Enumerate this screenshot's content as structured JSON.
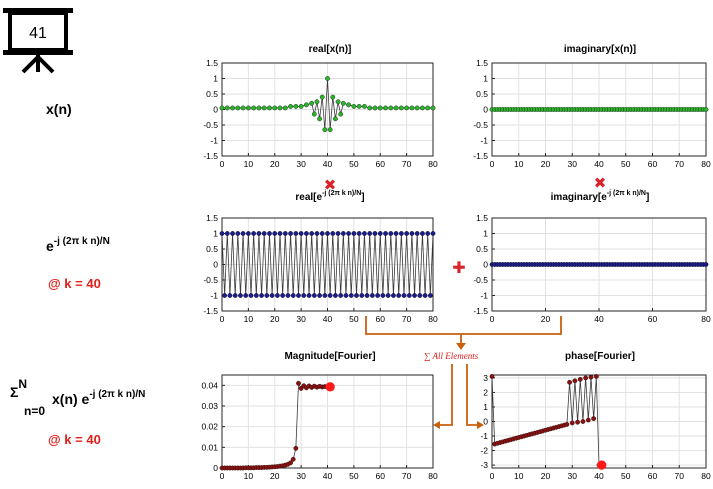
{
  "slide": {
    "number": "41"
  },
  "left_labels": {
    "xn": "x(n)",
    "kernel_base": "e",
    "kernel_exp": "-j (2π k n)/N",
    "kernel_k": "@ k = 40",
    "sum_sigma": "Σ",
    "sum_upper": "N",
    "sum_lower": "n=0",
    "sum_body": "x(n) e",
    "sum_exp": "-j (2π k n)/N",
    "sum_k": "@ k = 40"
  },
  "operators": {
    "multiply": "✖",
    "plus": "✚",
    "sum_annotation": "∑ All Elements"
  },
  "titles": {
    "real_x": "real[x(n)]",
    "imag_x": "imaginary[x(n)]",
    "real_e_pre": "real[e",
    "real_e_exp": "-j (2π k n)/N",
    "real_e_post": "]",
    "imag_e_pre": "imaginary[e",
    "imag_e_exp": "-j (2π k n)/N",
    "imag_e_post": "]",
    "mag": "Magnitude[Fourier]",
    "phase": "phase[Fourier]"
  },
  "colors": {
    "green": "#2bb52b",
    "navy": "#1c1c8c",
    "darkred": "#8b1010",
    "bright_red": "#ff1a1a",
    "orange": "#c8600e",
    "cross_red": "#d9232a"
  },
  "chart_data": [
    {
      "id": "real_x",
      "type": "line",
      "title": "real[x(n)]",
      "x_range": [
        0,
        80
      ],
      "ylim": [
        -1.5,
        1.5
      ],
      "xticks": [
        0,
        10,
        20,
        30,
        40,
        50,
        60,
        70,
        80
      ],
      "yticks": [
        -1.5,
        -1,
        -0.5,
        0,
        0.5,
        1,
        1.5
      ],
      "grid": true,
      "marker": "circle",
      "marker_color": "green",
      "x": [
        0,
        2,
        4,
        6,
        8,
        10,
        12,
        14,
        16,
        18,
        20,
        22,
        24,
        26,
        28,
        30,
        32,
        34,
        35,
        36,
        37,
        38,
        39,
        40,
        41,
        42,
        43,
        44,
        45,
        46,
        48,
        50,
        52,
        54,
        56,
        58,
        60,
        62,
        64,
        66,
        68,
        70,
        72,
        74,
        76,
        78,
        80
      ],
      "y": [
        0.05,
        0.05,
        0.05,
        0.05,
        0.05,
        0.05,
        0.05,
        0.05,
        0.05,
        0.05,
        0.05,
        0.05,
        0.05,
        0.1,
        0.1,
        0.1,
        0.15,
        0.2,
        -0.15,
        0.25,
        -0.3,
        0.4,
        -0.65,
        1.0,
        -0.65,
        0.4,
        -0.3,
        0.25,
        -0.15,
        0.2,
        0.15,
        0.1,
        0.1,
        0.1,
        0.05,
        0.05,
        0.05,
        0.05,
        0.05,
        0.05,
        0.05,
        0.05,
        0.05,
        0.05,
        0.05,
        0.05,
        0.05
      ]
    },
    {
      "id": "imag_x",
      "type": "line",
      "title": "imaginary[x(n)]",
      "x_range": [
        0,
        80
      ],
      "ylim": [
        -1.5,
        1.5
      ],
      "xticks": [
        0,
        10,
        20,
        30,
        40,
        50,
        60,
        70,
        80
      ],
      "yticks": [
        -1.5,
        -1,
        -0.5,
        0,
        0.5,
        1,
        1.5
      ],
      "grid": true,
      "marker": "circle",
      "marker_color": "green",
      "x_start": 0,
      "x_end": 80,
      "x_step": 1,
      "constant_y": 0
    },
    {
      "id": "real_e",
      "type": "line",
      "title": "real[e^-j (2π k n)/N]",
      "x_range": [
        0,
        80
      ],
      "ylim": [
        -1.5,
        1.5
      ],
      "xticks": [
        0,
        10,
        20,
        30,
        40,
        50,
        60,
        70,
        80
      ],
      "yticks": [
        -1.5,
        -1,
        -0.5,
        0,
        0.5,
        1,
        1.5
      ],
      "grid": true,
      "marker": "circle",
      "marker_color": "navy",
      "x_start": 0,
      "x_end": 80,
      "x_step": 1,
      "alternating_values": [
        1,
        -1
      ]
    },
    {
      "id": "imag_e",
      "type": "line",
      "title": "imaginary[e^-j (2π k n)/N]",
      "x_range": [
        0,
        80
      ],
      "ylim": [
        -1.5,
        1.5
      ],
      "xticks": [
        0,
        20,
        40,
        60,
        80
      ],
      "yticks": [
        -1.5,
        -1,
        -0.5,
        0,
        0.5,
        1,
        1.5
      ],
      "grid": true,
      "marker": "circle",
      "marker_color": "navy",
      "x_start": 0,
      "x_end": 80,
      "x_step": 1,
      "constant_y": 0
    },
    {
      "id": "mag",
      "type": "line",
      "title": "Magnitude[Fourier]",
      "x_range": [
        0,
        80
      ],
      "ylim": [
        0,
        0.045
      ],
      "xticks": [
        0,
        10,
        20,
        30,
        40,
        50,
        60,
        70,
        80
      ],
      "yticks": [
        0,
        0.01,
        0.02,
        0.03,
        0.04
      ],
      "grid": true,
      "marker": "circle",
      "marker_color": "darkred",
      "x": [
        0,
        1,
        2,
        3,
        4,
        5,
        6,
        7,
        8,
        9,
        10,
        11,
        12,
        13,
        14,
        15,
        16,
        17,
        18,
        19,
        20,
        21,
        22,
        23,
        24,
        25,
        26,
        27,
        28,
        29,
        30,
        31,
        32,
        33,
        34,
        35,
        36,
        37,
        38,
        39,
        40
      ],
      "y": [
        0,
        0,
        0,
        0,
        0,
        0,
        0,
        0,
        0,
        0.0001,
        0.0001,
        0.0001,
        0.0001,
        0.0002,
        0.0002,
        0.0002,
        0.0003,
        0.0003,
        0.0004,
        0.0005,
        0.0006,
        0.0007,
        0.0009,
        0.0011,
        0.0014,
        0.0018,
        0.0025,
        0.0042,
        0.0095,
        0.041,
        0.0385,
        0.0398,
        0.0388,
        0.0397,
        0.039,
        0.0396,
        0.0391,
        0.0395,
        0.0392,
        0.0394,
        0.0393
      ],
      "highlight_x": 41,
      "highlight_y": 0.0393
    },
    {
      "id": "phase",
      "type": "line",
      "title": "phase[Fourier]",
      "x_range": [
        0,
        80
      ],
      "ylim": [
        -3.2,
        3.2
      ],
      "xticks": [
        0,
        10,
        20,
        30,
        40,
        50,
        60,
        70,
        80
      ],
      "yticks": [
        -3,
        -2,
        -1,
        0,
        1,
        2,
        3
      ],
      "grid": true,
      "marker": "circle",
      "marker_color": "darkred",
      "x": [
        0,
        1,
        2,
        3,
        4,
        5,
        6,
        7,
        8,
        9,
        10,
        11,
        12,
        13,
        14,
        15,
        16,
        17,
        18,
        19,
        20,
        21,
        22,
        23,
        24,
        25,
        26,
        27,
        28,
        29,
        30,
        31,
        32,
        33,
        34,
        35,
        36,
        37,
        38,
        39,
        40
      ],
      "y": [
        3.1,
        -1.55,
        -1.5,
        -1.45,
        -1.4,
        -1.35,
        -1.3,
        -1.25,
        -1.2,
        -1.15,
        -1.1,
        -1.05,
        -1.0,
        -0.95,
        -0.9,
        -0.85,
        -0.8,
        -0.75,
        -0.7,
        -0.65,
        -0.6,
        -0.55,
        -0.5,
        -0.45,
        -0.4,
        -0.35,
        -0.3,
        -0.25,
        -0.2,
        2.7,
        -0.1,
        2.8,
        -0.05,
        2.9,
        -0.0,
        3.0,
        0.1,
        3.05,
        0.2,
        3.1,
        -3.0
      ],
      "highlight_x": 41,
      "highlight_y": -3.0
    }
  ]
}
